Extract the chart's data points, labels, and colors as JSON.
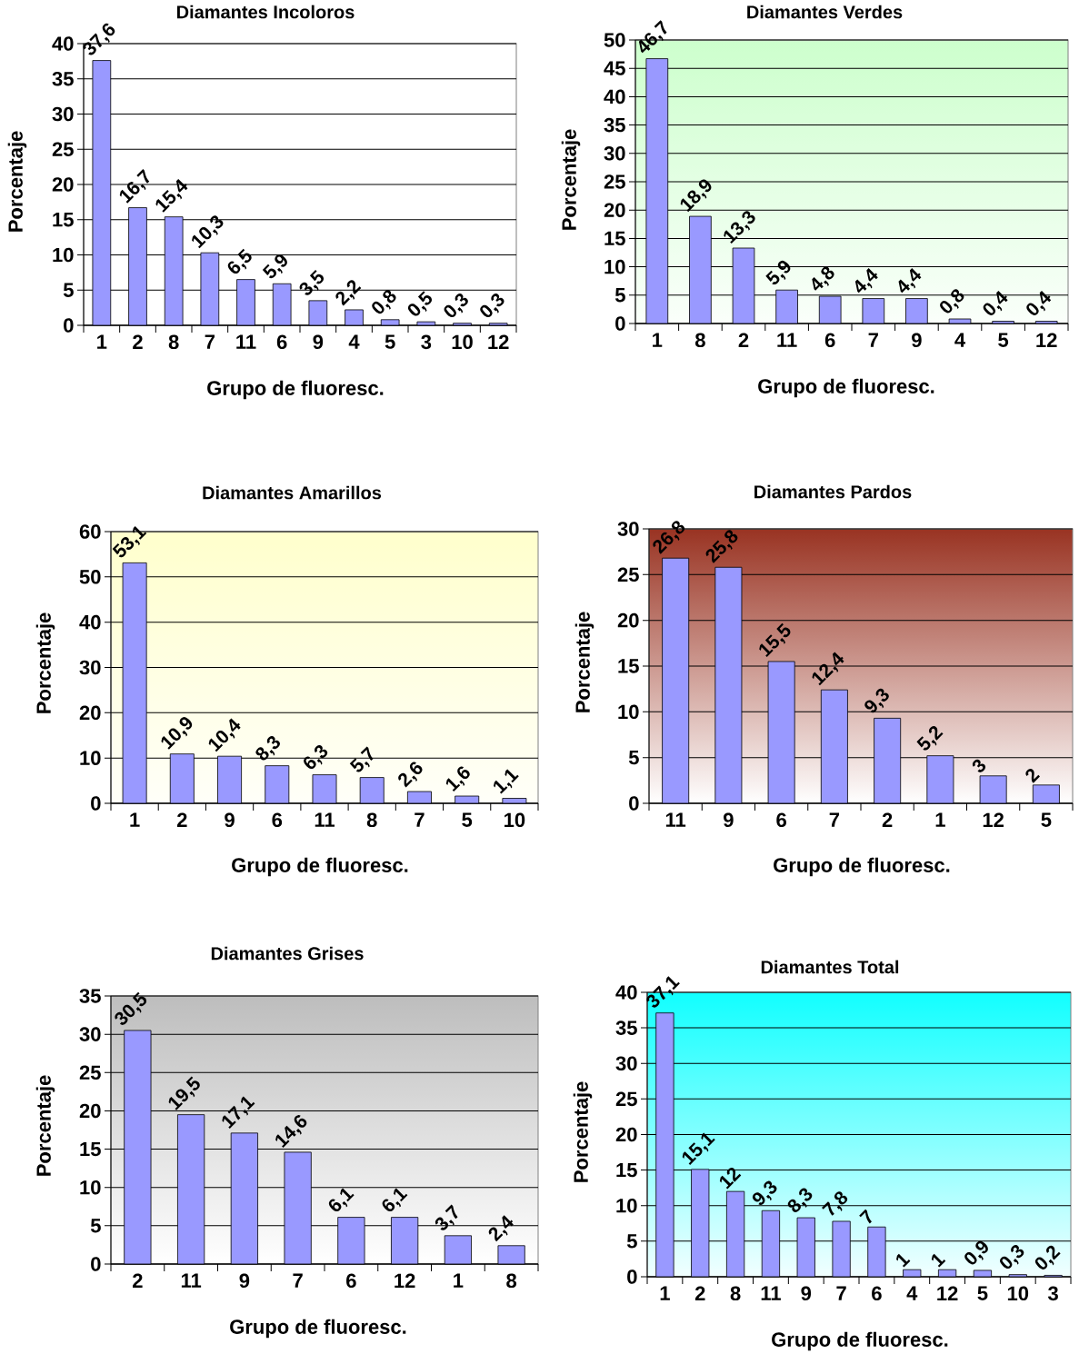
{
  "chart_data": [
    {
      "type": "bar",
      "title": "Diamantes Incoloros",
      "xlabel": "Grupo de fluoresc.",
      "ylabel": "Porcentaje",
      "categories": [
        "1",
        "2",
        "8",
        "7",
        "11",
        "6",
        "9",
        "4",
        "5",
        "3",
        "10",
        "12"
      ],
      "values": [
        37.6,
        16.7,
        15.4,
        10.3,
        6.5,
        5.9,
        3.5,
        2.2,
        0.8,
        0.5,
        0.3,
        0.3
      ],
      "value_labels": [
        "37,6",
        "16,7",
        "15,4",
        "10,3",
        "6,5",
        "5,9",
        "3,5",
        "2,2",
        "0,8",
        "0,5",
        "0,3",
        "0,3"
      ],
      "color": "#9999ff",
      "ylim": [
        0,
        40
      ],
      "yticks": [
        0,
        5,
        10,
        15,
        20,
        25,
        30,
        35,
        40
      ],
      "grid": "y"
    },
    {
      "type": "bar",
      "title": "Diamantes Verdes",
      "xlabel": "Grupo de fluoresc.",
      "ylabel": "Porcentaje",
      "categories": [
        "1",
        "8",
        "2",
        "11",
        "6",
        "7",
        "9",
        "4",
        "5",
        "12"
      ],
      "values": [
        46.7,
        18.9,
        13.3,
        5.9,
        4.8,
        4.4,
        4.4,
        0.8,
        0.4,
        0.4
      ],
      "value_labels": [
        "46,7",
        "18,9",
        "13,3",
        "5,9",
        "4,8",
        "4,4",
        "4,4",
        "0,8",
        "0,4",
        "0,4"
      ],
      "color": "#9999ff",
      "ylim": [
        0,
        50
      ],
      "yticks": [
        0,
        5,
        10,
        15,
        20,
        25,
        30,
        35,
        40,
        45,
        50
      ],
      "grid": "y"
    },
    {
      "type": "bar",
      "title": "Diamantes Amarillos",
      "xlabel": "Grupo de fluoresc.",
      "ylabel": "Porcentaje",
      "categories": [
        "1",
        "2",
        "9",
        "6",
        "11",
        "8",
        "7",
        "5",
        "10"
      ],
      "values": [
        53.1,
        10.9,
        10.4,
        8.3,
        6.3,
        5.7,
        2.6,
        1.6,
        1.1
      ],
      "value_labels": [
        "53,1",
        "10,9",
        "10,4",
        "8,3",
        "6,3",
        "5,7",
        "2,6",
        "1,6",
        "1,1"
      ],
      "color": "#9999ff",
      "ylim": [
        0,
        60
      ],
      "yticks": [
        0,
        10,
        20,
        30,
        40,
        50,
        60
      ],
      "grid": "y"
    },
    {
      "type": "bar",
      "title": "Diamantes Pardos",
      "xlabel": "Grupo de fluoresc.",
      "ylabel": "Porcentaje",
      "categories": [
        "11",
        "9",
        "6",
        "7",
        "2",
        "1",
        "12",
        "5"
      ],
      "values": [
        26.8,
        25.8,
        15.5,
        12.4,
        9.3,
        5.2,
        3,
        2
      ],
      "value_labels": [
        "26,8",
        "25,8",
        "15,5",
        "12,4",
        "9,3",
        "5,2",
        "3",
        "2"
      ],
      "color": "#9999ff",
      "ylim": [
        0,
        30
      ],
      "yticks": [
        0,
        5,
        10,
        15,
        20,
        25,
        30
      ],
      "grid": "y"
    },
    {
      "type": "bar",
      "title": "Diamantes Grises",
      "xlabel": "Grupo de fluoresc.",
      "ylabel": "Porcentaje",
      "categories": [
        "2",
        "11",
        "9",
        "7",
        "6",
        "12",
        "1",
        "8"
      ],
      "values": [
        30.5,
        19.5,
        17.1,
        14.6,
        6.1,
        6.1,
        3.7,
        2.4
      ],
      "value_labels": [
        "30,5",
        "19,5",
        "17,1",
        "14,6",
        "6,1",
        "6,1",
        "3,7",
        "2,4"
      ],
      "color": "#9999ff",
      "ylim": [
        0,
        35
      ],
      "yticks": [
        0,
        5,
        10,
        15,
        20,
        25,
        30,
        35
      ],
      "grid": "y"
    },
    {
      "type": "bar",
      "title": "Diamantes Total",
      "xlabel": "Grupo de fluoresc.",
      "ylabel": "Porcentaje",
      "categories": [
        "1",
        "2",
        "8",
        "11",
        "9",
        "7",
        "6",
        "4",
        "12",
        "5",
        "10",
        "3"
      ],
      "values": [
        37.1,
        15.1,
        12,
        9.3,
        8.3,
        7.8,
        7,
        1,
        1,
        0.9,
        0.3,
        0.2
      ],
      "value_labels": [
        "37,1",
        "15,1",
        "12",
        "9,3",
        "8,3",
        "7,8",
        "7",
        "1",
        "1",
        "0,9",
        "0,3",
        "0,2"
      ],
      "color": "#9999ff",
      "ylim": [
        0,
        40
      ],
      "yticks": [
        0,
        5,
        10,
        15,
        20,
        25,
        30,
        35,
        40
      ],
      "grid": "y"
    }
  ]
}
